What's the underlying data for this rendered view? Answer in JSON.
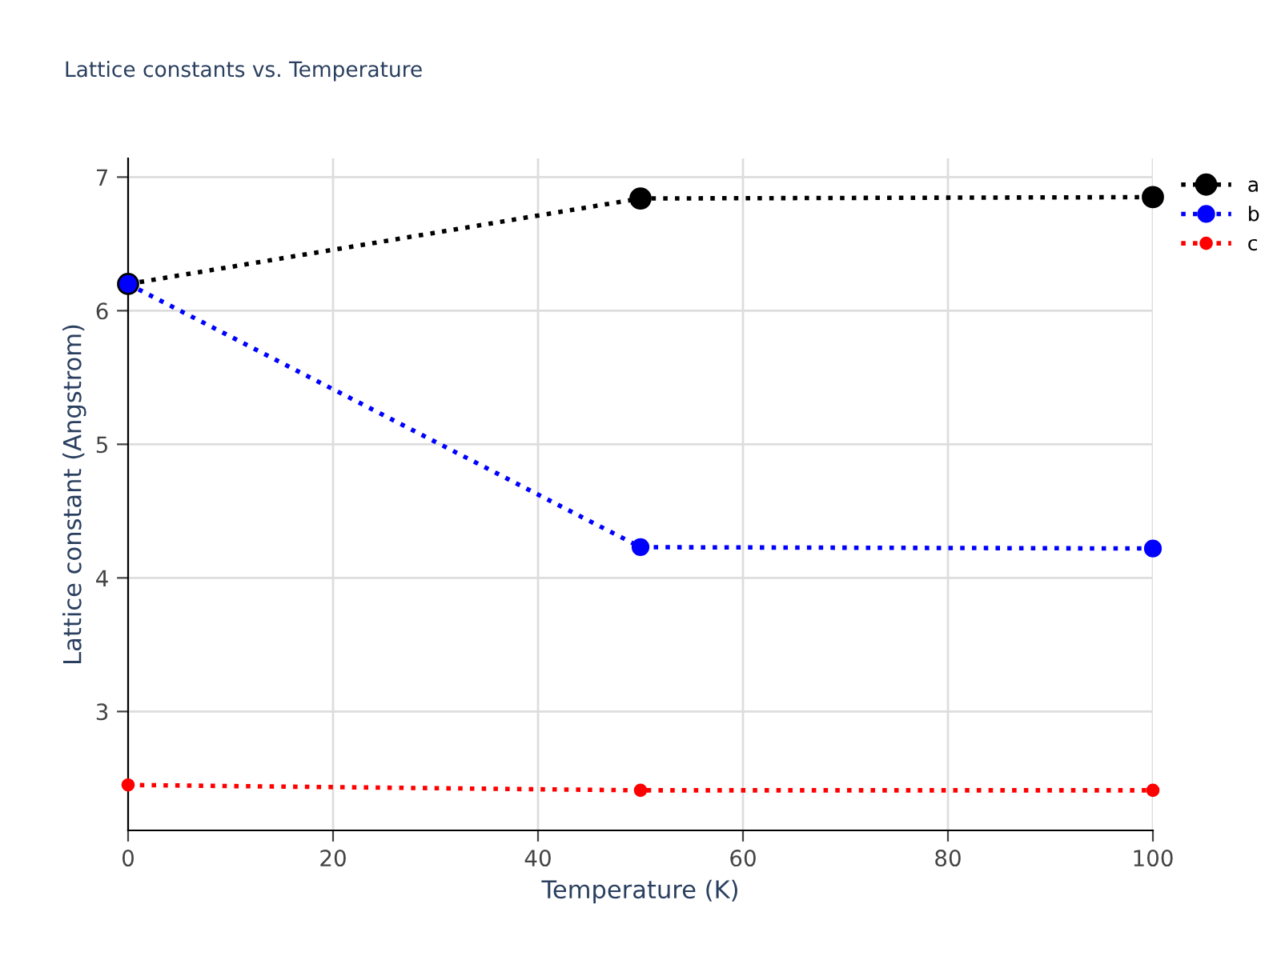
{
  "chart_data": {
    "type": "line",
    "title": "Lattice constants vs. Temperature",
    "xlabel": "Temperature (K)",
    "ylabel": "Lattice constant (Angstrom)",
    "x": [
      0,
      50,
      100
    ],
    "series": [
      {
        "name": "a",
        "color": "#000000",
        "values": [
          6.2,
          6.84,
          6.85
        ]
      },
      {
        "name": "b",
        "color": "#0000ff",
        "values": [
          6.2,
          4.23,
          4.22
        ]
      },
      {
        "name": "c",
        "color": "#ff0000",
        "values": [
          2.45,
          2.41,
          2.41
        ]
      }
    ],
    "xlim": [
      0,
      100
    ],
    "xticks": [
      0,
      20,
      40,
      60,
      80,
      100
    ],
    "ylim": [
      2.11,
      7.14
    ],
    "yticks": [
      3,
      4,
      5,
      6,
      7
    ],
    "grid": true,
    "legend": "top right",
    "marker": "circle",
    "line_style": "dotted"
  }
}
